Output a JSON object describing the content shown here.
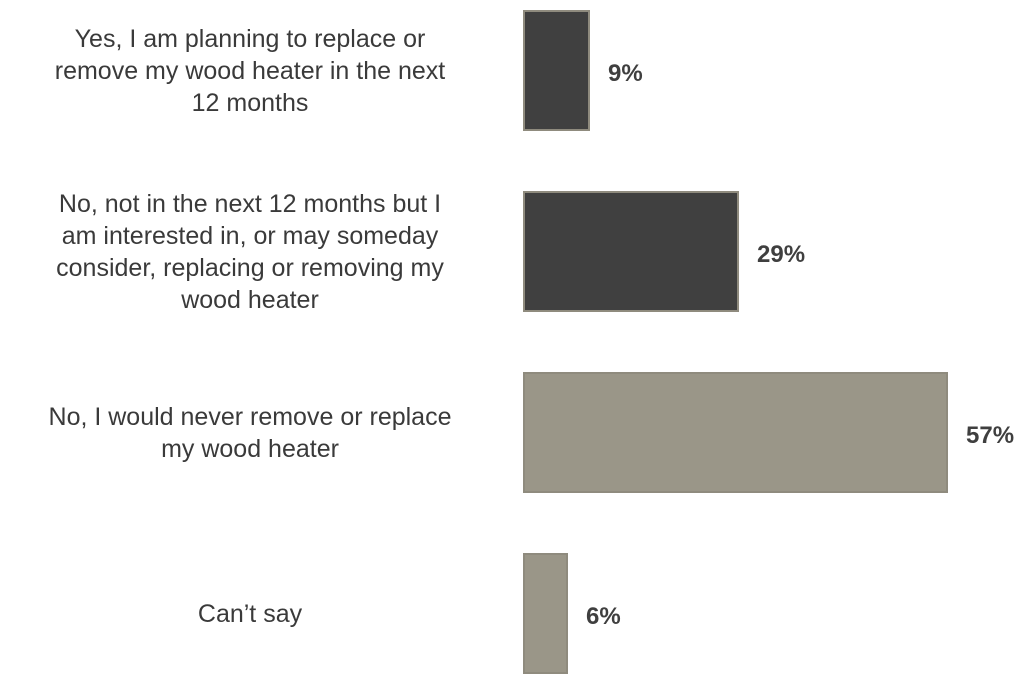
{
  "chart_data": {
    "type": "bar",
    "orientation": "horizontal",
    "categories": [
      [
        "Yes, I am planning to replace or",
        "remove my wood heater in the next",
        "12 months"
      ],
      [
        "No, not in the next 12 months but I",
        "am interested in, or may someday",
        "consider, replacing or removing my",
        "wood heater"
      ],
      [
        "No, I would never remove or replace",
        "my wood heater"
      ],
      [
        "Can’t say"
      ]
    ],
    "values": [
      9,
      29,
      57,
      6
    ],
    "value_labels": [
      "9%",
      "29%",
      "57%",
      "6%"
    ],
    "bar_colors": [
      "#404040",
      "#404040",
      "#9a9688",
      "#9a9688"
    ],
    "bar_border_color": "#8f8b7e",
    "xlim": [
      0,
      57
    ],
    "grid": false,
    "title": "",
    "xlabel": "",
    "ylabel": ""
  }
}
